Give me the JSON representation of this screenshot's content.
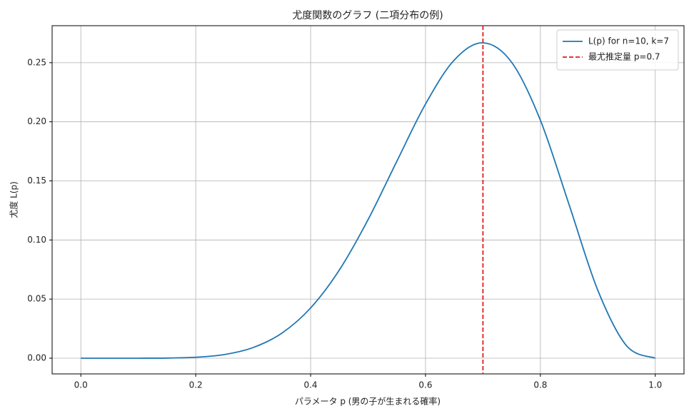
{
  "chart_data": {
    "type": "line",
    "title": "尤度関数のグラフ (二項分布の例)",
    "x_label": "パラメータ p (男の子が生まれる確率)",
    "y_label": "尤度 L(p)",
    "x": [
      0,
      0.05,
      0.1,
      0.15,
      0.2,
      0.25,
      0.3,
      0.35,
      0.4,
      0.45,
      0.5,
      0.55,
      0.6,
      0.65,
      0.7,
      0.75,
      0.8,
      0.85,
      0.9,
      0.95,
      1.0
    ],
    "series": [
      {
        "name": "L(p) for n=10, k=7",
        "color": "#1f77b4",
        "values": [
          0,
          0.0,
          0.0,
          0.0001,
          0.0008,
          0.0031,
          0.009,
          0.0212,
          0.0425,
          0.0746,
          0.1172,
          0.1665,
          0.215,
          0.2522,
          0.2668,
          0.2503,
          0.2013,
          0.1298,
          0.0574,
          0.0105,
          0
        ]
      }
    ],
    "vline": {
      "name": "最尤推定量 p=0.7",
      "x": 0.7,
      "color": "#e31a1c"
    },
    "xlim": [
      -0.05,
      1.05
    ],
    "ylim": [
      -0.0133,
      0.2813
    ],
    "xticks": [
      {
        "value": 0,
        "label": "0.0"
      },
      0.2,
      0.4,
      0.6,
      0.8,
      {
        "value": 1,
        "label": "1.0"
      }
    ],
    "yticks": [
      {
        "value": 0,
        "label": "0.00"
      },
      0.05,
      {
        "value": 0.1,
        "label": "0.10"
      },
      0.15,
      {
        "value": 0.2,
        "label": "0.20"
      },
      0.25
    ],
    "grid": true,
    "legend": "upper right"
  }
}
